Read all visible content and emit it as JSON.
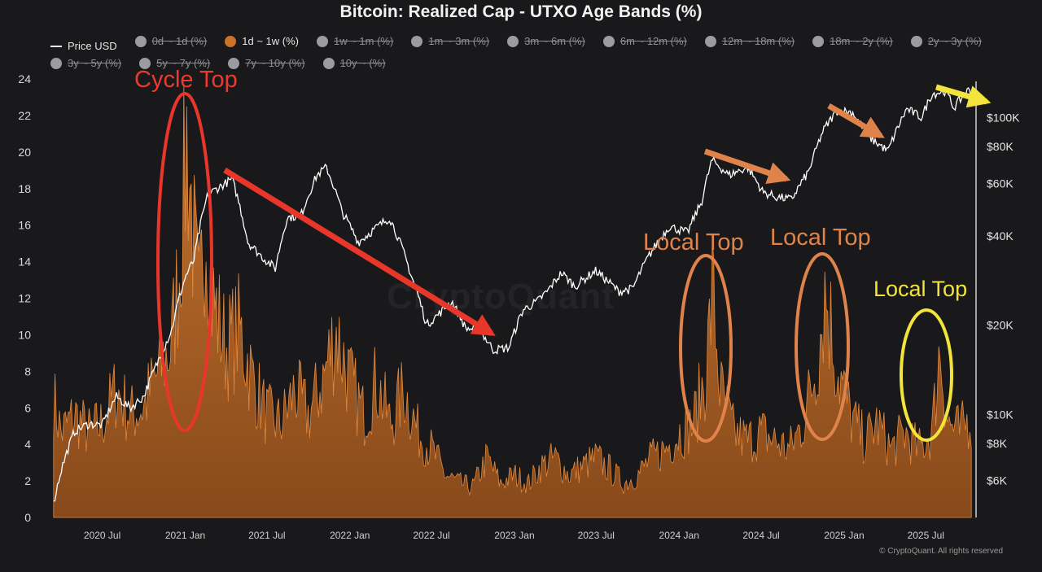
{
  "title": "Bitcoin: Realized Cap - UTXO Age Bands (%)",
  "legend": [
    {
      "label": "Price USD",
      "kind": "line",
      "active": true
    },
    {
      "label": "0d ~ 1d (%)",
      "kind": "dot",
      "active": false
    },
    {
      "label": "1d ~ 1w (%)",
      "kind": "dot",
      "active": true,
      "color": "#c8722a"
    },
    {
      "label": "1w ~ 1m (%)",
      "kind": "dot",
      "active": false
    },
    {
      "label": "1m ~ 3m (%)",
      "kind": "dot",
      "active": false
    },
    {
      "label": "3m ~ 6m (%)",
      "kind": "dot",
      "active": false
    },
    {
      "label": "6m ~ 12m (%)",
      "kind": "dot",
      "active": false
    },
    {
      "label": "12m ~ 18m (%)",
      "kind": "dot",
      "active": false
    },
    {
      "label": "18m ~ 2y (%)",
      "kind": "dot",
      "active": false
    },
    {
      "label": "2y ~ 3y (%)",
      "kind": "dot",
      "active": false
    },
    {
      "label": "3y ~ 5y (%)",
      "kind": "dot",
      "active": false
    },
    {
      "label": "5y ~ 7y (%)",
      "kind": "dot",
      "active": false
    },
    {
      "label": "7y ~ 10y (%)",
      "kind": "dot",
      "active": false
    },
    {
      "label": "10y ~ (%)",
      "kind": "dot",
      "active": false
    }
  ],
  "watermark": "CryptoQuant",
  "copyright": "© CryptoQuant. All rights reserved",
  "annotations": {
    "cycle_top": "Cycle Top",
    "local_top_1": "Local Top",
    "local_top_2": "Local Top",
    "local_top_3": "Local Top"
  },
  "colors": {
    "area": "#c8722a",
    "price": "#ffffff",
    "red": "#e8362b",
    "orange": "#e0834a",
    "yellow": "#f2e43a"
  },
  "chart_data": {
    "type": "area",
    "x_start": "2020-03",
    "x_end": "2025-10",
    "x_ticks": [
      {
        "label": "2020 Jul",
        "date": "2020-07"
      },
      {
        "label": "2021 Jan",
        "date": "2021-01"
      },
      {
        "label": "2021 Jul",
        "date": "2021-07"
      },
      {
        "label": "2022 Jan",
        "date": "2022-01"
      },
      {
        "label": "2022 Jul",
        "date": "2022-07"
      },
      {
        "label": "2023 Jan",
        "date": "2023-01"
      },
      {
        "label": "2023 Jul",
        "date": "2023-07"
      },
      {
        "label": "2024 Jan",
        "date": "2024-01"
      },
      {
        "label": "2024 Jul",
        "date": "2024-07"
      },
      {
        "label": "2025 Jan",
        "date": "2025-01"
      },
      {
        "label": "2025 Jul",
        "date": "2025-07"
      }
    ],
    "y_left": {
      "ylim": [
        0,
        24
      ],
      "ticks": [
        0,
        2,
        4,
        6,
        8,
        10,
        12,
        14,
        16,
        18,
        20,
        22,
        24
      ]
    },
    "y_right": {
      "scale": "log",
      "ylim": [
        4500,
        135000
      ],
      "ticks": [
        {
          "label": "$6K",
          "value": 6000
        },
        {
          "label": "$8K",
          "value": 8000
        },
        {
          "label": "$10K",
          "value": 10000
        },
        {
          "label": "$20K",
          "value": 20000
        },
        {
          "label": "$40K",
          "value": 40000
        },
        {
          "label": "$60K",
          "value": 60000
        },
        {
          "label": "$80K",
          "value": 80000
        },
        {
          "label": "$100K",
          "value": 100000
        }
      ]
    },
    "series": [
      {
        "name": "1d ~ 1w (%)",
        "type": "area",
        "axis": "left",
        "points": [
          [
            "2020-03-15",
            7.0
          ],
          [
            "2020-04-01",
            5.0
          ],
          [
            "2020-05-01",
            6.0
          ],
          [
            "2020-06-01",
            5.0
          ],
          [
            "2020-07-01",
            5.5
          ],
          [
            "2020-08-01",
            7.5
          ],
          [
            "2020-09-01",
            6.0
          ],
          [
            "2020-10-01",
            6.5
          ],
          [
            "2020-11-01",
            8.5
          ],
          [
            "2020-12-01",
            10.0
          ],
          [
            "2020-12-20",
            15.0
          ],
          [
            "2021-01-05",
            22.5
          ],
          [
            "2021-01-20",
            16.0
          ],
          [
            "2021-02-01",
            12.0
          ],
          [
            "2021-02-15",
            18.5
          ],
          [
            "2021-03-01",
            13.0
          ],
          [
            "2021-04-01",
            10.0
          ],
          [
            "2021-05-01",
            11.0
          ],
          [
            "2021-06-01",
            8.0
          ],
          [
            "2021-07-01",
            6.0
          ],
          [
            "2021-08-01",
            5.5
          ],
          [
            "2021-09-01",
            7.5
          ],
          [
            "2021-10-01",
            6.0
          ],
          [
            "2021-11-01",
            8.0
          ],
          [
            "2021-12-01",
            11.0
          ],
          [
            "2022-01-01",
            8.0
          ],
          [
            "2022-02-01",
            6.0
          ],
          [
            "2022-03-01",
            8.0
          ],
          [
            "2022-04-01",
            5.5
          ],
          [
            "2022-05-01",
            7.5
          ],
          [
            "2022-06-01",
            5.0
          ],
          [
            "2022-07-01",
            4.0
          ],
          [
            "2022-08-01",
            2.5
          ],
          [
            "2022-09-01",
            2.0
          ],
          [
            "2022-10-01",
            1.8
          ],
          [
            "2022-11-01",
            3.5
          ],
          [
            "2022-12-01",
            2.0
          ],
          [
            "2023-01-01",
            2.5
          ],
          [
            "2023-02-01",
            2.0
          ],
          [
            "2023-03-01",
            3.0
          ],
          [
            "2023-04-01",
            3.5
          ],
          [
            "2023-05-01",
            2.5
          ],
          [
            "2023-06-01",
            3.0
          ],
          [
            "2023-07-01",
            3.5
          ],
          [
            "2023-08-01",
            2.8
          ],
          [
            "2023-09-01",
            2.0
          ],
          [
            "2023-10-01",
            2.5
          ],
          [
            "2023-11-01",
            3.5
          ],
          [
            "2023-12-01",
            4.0
          ],
          [
            "2024-01-01",
            5.0
          ],
          [
            "2024-02-01",
            5.5
          ],
          [
            "2024-03-01",
            8.5
          ],
          [
            "2024-03-15",
            13.5
          ],
          [
            "2024-04-01",
            7.5
          ],
          [
            "2024-05-01",
            5.0
          ],
          [
            "2024-06-01",
            4.5
          ],
          [
            "2024-07-01",
            5.0
          ],
          [
            "2024-08-01",
            4.5
          ],
          [
            "2024-09-01",
            4.0
          ],
          [
            "2024-10-01",
            5.5
          ],
          [
            "2024-11-01",
            9.0
          ],
          [
            "2024-11-20",
            13.5
          ],
          [
            "2024-12-15",
            9.0
          ],
          [
            "2025-01-15",
            6.0
          ],
          [
            "2025-02-15",
            4.5
          ],
          [
            "2025-03-15",
            5.5
          ],
          [
            "2025-04-15",
            4.0
          ],
          [
            "2025-05-15",
            5.0
          ],
          [
            "2025-06-15",
            4.0
          ],
          [
            "2025-07-15",
            5.0
          ],
          [
            "2025-08-01",
            10.0
          ],
          [
            "2025-08-20",
            5.5
          ],
          [
            "2025-09-15",
            5.0
          ],
          [
            "2025-10-10",
            6.0
          ]
        ]
      },
      {
        "name": "Price USD",
        "type": "line",
        "axis": "right",
        "points": [
          [
            "2020-03-15",
            5000
          ],
          [
            "2020-04-01",
            6500
          ],
          [
            "2020-05-01",
            8800
          ],
          [
            "2020-06-01",
            9300
          ],
          [
            "2020-07-01",
            9200
          ],
          [
            "2020-08-01",
            11500
          ],
          [
            "2020-09-01",
            10500
          ],
          [
            "2020-10-01",
            11500
          ],
          [
            "2020-11-01",
            15000
          ],
          [
            "2020-12-01",
            19000
          ],
          [
            "2021-01-01",
            29000
          ],
          [
            "2021-01-20",
            33000
          ],
          [
            "2021-02-20",
            55000
          ],
          [
            "2021-03-15",
            58000
          ],
          [
            "2021-04-15",
            62000
          ],
          [
            "2021-05-20",
            38000
          ],
          [
            "2021-06-20",
            34000
          ],
          [
            "2021-07-20",
            31000
          ],
          [
            "2021-08-15",
            46000
          ],
          [
            "2021-09-15",
            47000
          ],
          [
            "2021-10-20",
            64000
          ],
          [
            "2021-11-10",
            68000
          ],
          [
            "2021-12-15",
            48000
          ],
          [
            "2022-01-20",
            38000
          ],
          [
            "2022-03-30",
            46000
          ],
          [
            "2022-05-15",
            30000
          ],
          [
            "2022-06-20",
            20000
          ],
          [
            "2022-07-20",
            22000
          ],
          [
            "2022-08-15",
            24000
          ],
          [
            "2022-09-15",
            19500
          ],
          [
            "2022-10-15",
            19300
          ],
          [
            "2022-11-15",
            16500
          ],
          [
            "2022-12-20",
            16800
          ],
          [
            "2023-01-20",
            22500
          ],
          [
            "2023-02-20",
            24000
          ],
          [
            "2023-03-15",
            26000
          ],
          [
            "2023-04-15",
            30000
          ],
          [
            "2023-05-15",
            27000
          ],
          [
            "2023-06-30",
            30500
          ],
          [
            "2023-08-20",
            26000
          ],
          [
            "2023-09-20",
            26500
          ],
          [
            "2023-10-25",
            34000
          ],
          [
            "2023-12-10",
            43000
          ],
          [
            "2024-01-20",
            41000
          ],
          [
            "2024-02-20",
            52000
          ],
          [
            "2024-03-14",
            72000
          ],
          [
            "2024-04-20",
            64000
          ],
          [
            "2024-06-01",
            68000
          ],
          [
            "2024-07-05",
            56000
          ],
          [
            "2024-08-05",
            54000
          ],
          [
            "2024-09-06",
            53000
          ],
          [
            "2024-10-15",
            66000
          ],
          [
            "2024-11-15",
            90000
          ],
          [
            "2024-12-17",
            106000
          ],
          [
            "2025-01-20",
            104000
          ],
          [
            "2025-02-25",
            86000
          ],
          [
            "2025-04-08",
            77000
          ],
          [
            "2025-05-20",
            107000
          ],
          [
            "2025-06-22",
            100000
          ],
          [
            "2025-07-14",
            120000
          ],
          [
            "2025-08-14",
            123000
          ],
          [
            "2025-09-01",
            108000
          ],
          [
            "2025-10-06",
            125000
          ],
          [
            "2025-10-12",
            112000
          ]
        ]
      }
    ]
  }
}
